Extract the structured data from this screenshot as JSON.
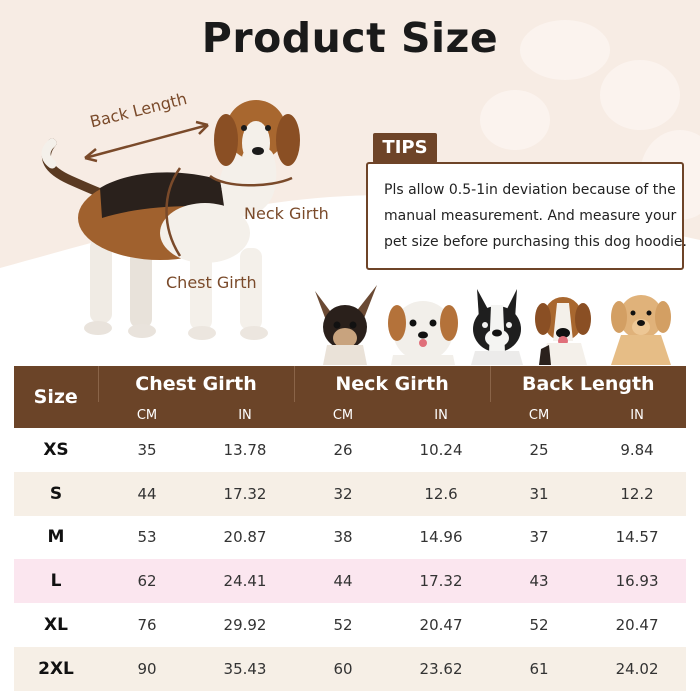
{
  "title": "Product Size",
  "measurements": {
    "back_length": "Back Length",
    "neck_girth": "Neck Girth",
    "chest_girth": "Chest Girth"
  },
  "tips": {
    "tag": "TIPS",
    "lines": [
      "Pls allow 0.5-1in deviation because of the",
      "manual measurement. And measure your",
      "pet size before purchasing this dog hoodie."
    ]
  },
  "dogs": [
    "chihuahua-photo",
    "shih-tzu-photo",
    "french-bulldog-photo",
    "beagle-photo",
    "golden-retriever-photo"
  ],
  "table": {
    "size_header": "Size",
    "groups": [
      "Chest Girth",
      "Neck Girth",
      "Back Length"
    ],
    "units": [
      "CM",
      "IN",
      "CM",
      "IN",
      "CM",
      "IN"
    ],
    "rows": [
      {
        "size": "XS",
        "values": [
          "35",
          "13.78",
          "26",
          "10.24",
          "25",
          "9.84"
        ]
      },
      {
        "size": "S",
        "values": [
          "44",
          "17.32",
          "32",
          "12.6",
          "31",
          "12.2"
        ]
      },
      {
        "size": "M",
        "values": [
          "53",
          "20.87",
          "38",
          "14.96",
          "37",
          "14.57"
        ]
      },
      {
        "size": "L",
        "values": [
          "62",
          "24.41",
          "44",
          "17.32",
          "43",
          "16.93"
        ]
      },
      {
        "size": "XL",
        "values": [
          "76",
          "29.92",
          "52",
          "20.47",
          "52",
          "20.47"
        ]
      },
      {
        "size": "2XL",
        "values": [
          "90",
          "35.43",
          "60",
          "23.62",
          "61",
          "24.02"
        ]
      }
    ]
  },
  "colors": {
    "header_brown": "#6b4428",
    "accent_arrow": "#7a4a2a",
    "highlight_row_pink": "#fbe6ef",
    "alt_row_beige": "#f6efe6"
  }
}
